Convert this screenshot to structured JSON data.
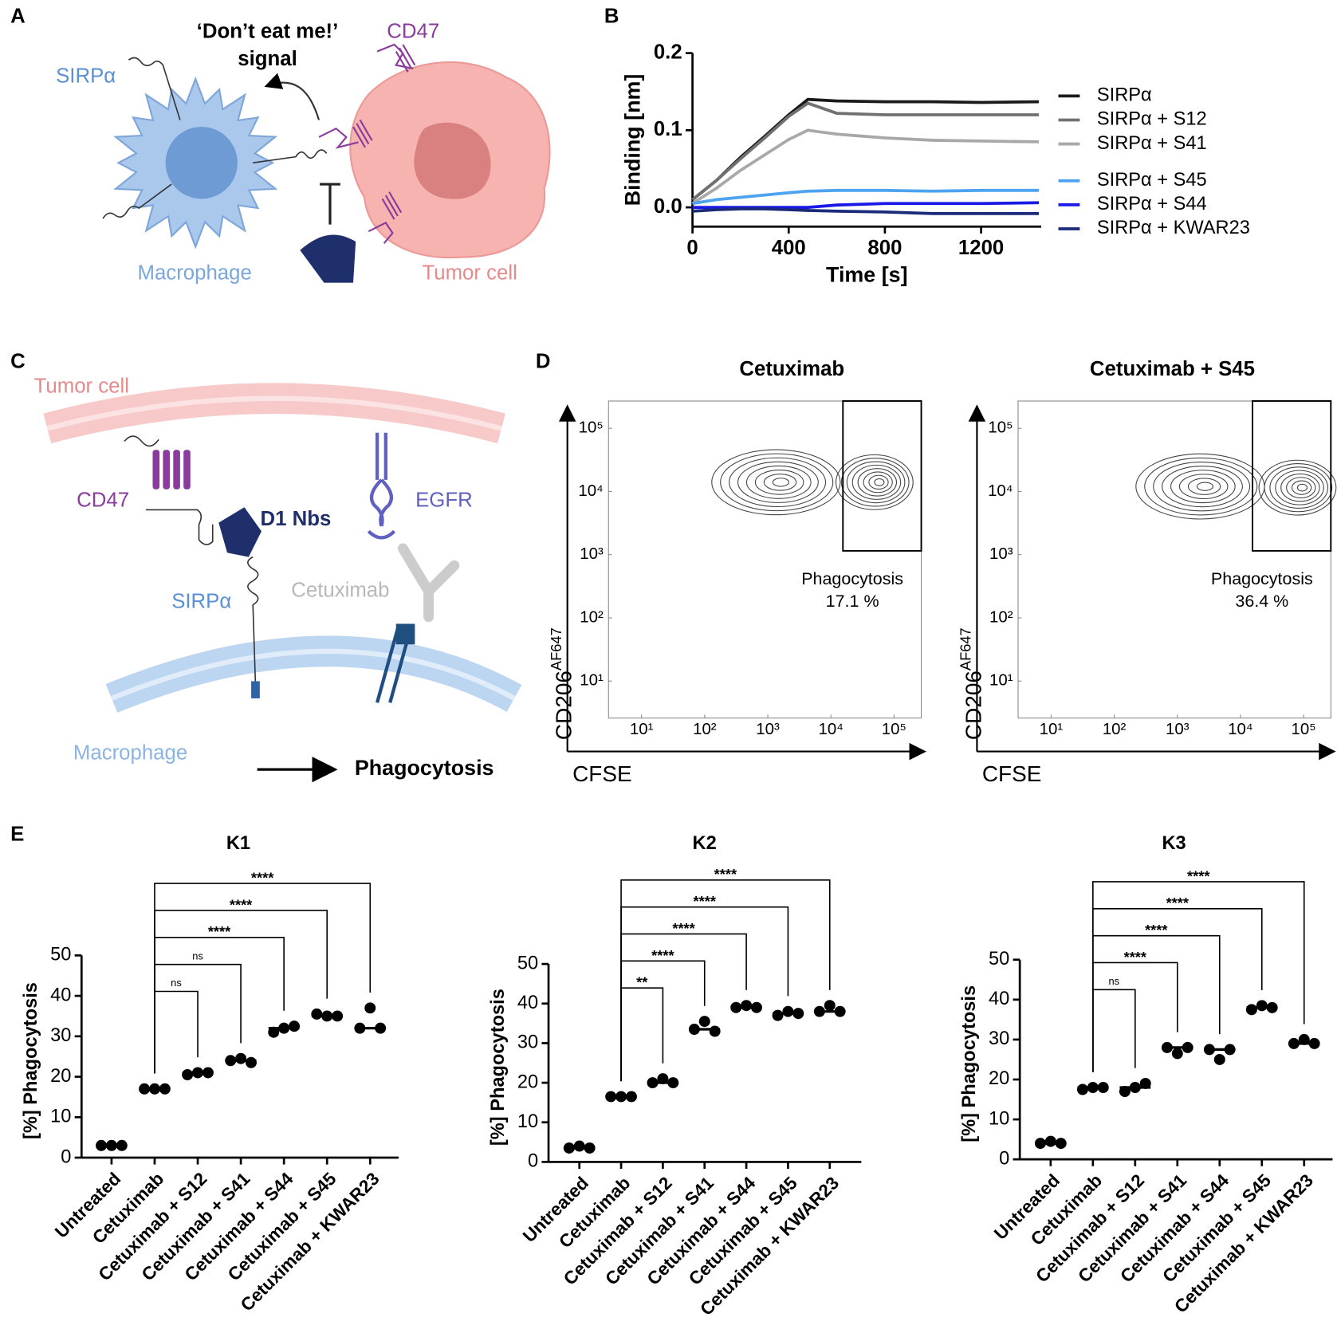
{
  "panels": [
    "A",
    "B",
    "C",
    "D",
    "E"
  ],
  "diagram_a": {
    "signal_line1": "‘Don’t eat me!’",
    "signal_line2": "signal",
    "cd47": "CD47",
    "sirpa": "SIRPα",
    "macrophage": "Macrophage",
    "tumor_cell": "Tumor cell"
  },
  "diagram_c": {
    "tumor_cell": "Tumor cell",
    "cd47": "CD47",
    "nbs": "D1 Nbs",
    "egfr": "EGFR",
    "sirpa": "SIRPα",
    "cetuximab": "Cetuximab",
    "macrophage": "Macrophage",
    "phagocytosis": "Phagocytosis"
  },
  "chart_data": [
    {
      "type": "line",
      "xlabel": "Time [s]",
      "ylabel": "Binding [nm]",
      "x": [
        0,
        100,
        200,
        300,
        400,
        480,
        600,
        800,
        1000,
        1200,
        1440
      ],
      "xlim": [
        0,
        1450
      ],
      "xticks": [
        0,
        400,
        800,
        1200
      ],
      "ylim": [
        -0.025,
        0.2
      ],
      "yticks": [
        {
          "value": 0,
          "label": "0.0"
        },
        0.1,
        0.2
      ],
      "series": [
        {
          "name": "SIRPα",
          "color": "#1a1a1a",
          "values": [
            0.01,
            0.035,
            0.065,
            0.092,
            0.12,
            0.14,
            0.138,
            0.137,
            0.137,
            0.136,
            0.137
          ]
        },
        {
          "name": "SIRPα + S12",
          "color": "#707070",
          "values": [
            0.01,
            0.035,
            0.063,
            0.09,
            0.118,
            0.135,
            0.122,
            0.12,
            0.12,
            0.12,
            0.12
          ]
        },
        {
          "name": "SIRPα + S41",
          "color": "#a8a8a8",
          "values": [
            0.005,
            0.025,
            0.048,
            0.068,
            0.088,
            0.1,
            0.095,
            0.09,
            0.087,
            0.086,
            0.085
          ]
        },
        {
          "name": "SIRPα + S45",
          "color": "#4da3ef",
          "values": [
            0.005,
            0.01,
            0.013,
            0.016,
            0.019,
            0.021,
            0.022,
            0.022,
            0.021,
            0.022,
            0.022
          ]
        },
        {
          "name": "SIRPα + S44",
          "color": "#1a1ae6",
          "values": [
            0,
            0,
            0,
            0,
            0,
            0,
            0.003,
            0.005,
            0.005,
            0.005,
            0.006
          ]
        },
        {
          "name": "SIRPα + KWAR23",
          "color": "#1c2a7a",
          "values": [
            -0.005,
            -0.003,
            -0.002,
            -0.002,
            -0.003,
            -0.004,
            -0.005,
            -0.006,
            -0.008,
            -0.008,
            -0.008
          ]
        }
      ]
    },
    {
      "type": "contour",
      "title": "Cetuximab",
      "xlabel": "CFSE",
      "ylabel": "CD206",
      "ylabel_sup": "AF647",
      "log_scale": true,
      "xlim": [
        3,
        270000
      ],
      "ylim": [
        2.6,
        270000
      ],
      "xticks": [
        {
          "value": 10,
          "label": "10¹"
        },
        {
          "value": 100,
          "label": "10²"
        },
        {
          "value": 1000,
          "label": "10³"
        },
        {
          "value": 10000,
          "label": "10⁴"
        },
        {
          "value": 100000,
          "label": "10⁵"
        }
      ],
      "yticks": [
        {
          "value": 10,
          "label": "10¹"
        },
        {
          "value": 100,
          "label": "10²"
        },
        {
          "value": 1000,
          "label": "10³"
        },
        {
          "value": 10000,
          "label": "10⁴"
        },
        {
          "value": 100000,
          "label": "10⁵"
        }
      ],
      "populations": [
        {
          "x": 1350,
          "y": 14000
        },
        {
          "x": 49000,
          "y": 14000
        }
      ],
      "gate": {
        "x_min": 15500,
        "y_min": 1150,
        "label": "Phagocytosis",
        "value": 17.1,
        "value_label": "17.1 %"
      }
    },
    {
      "type": "contour",
      "title": "Cetuximab + S45",
      "xlabel": "CFSE",
      "ylabel": "CD206",
      "ylabel_sup": "AF647",
      "log_scale": true,
      "xlim": [
        3,
        270000
      ],
      "ylim": [
        2.6,
        270000
      ],
      "xticks": [
        {
          "value": 10,
          "label": "10¹"
        },
        {
          "value": 100,
          "label": "10²"
        },
        {
          "value": 1000,
          "label": "10³"
        },
        {
          "value": 10000,
          "label": "10⁴"
        },
        {
          "value": 100000,
          "label": "10⁵"
        }
      ],
      "yticks": [
        {
          "value": 10,
          "label": "10¹"
        },
        {
          "value": 100,
          "label": "10²"
        },
        {
          "value": 1000,
          "label": "10³"
        },
        {
          "value": 10000,
          "label": "10⁴"
        },
        {
          "value": 100000,
          "label": "10⁵"
        }
      ],
      "populations": [
        {
          "x": 2300,
          "y": 12000
        },
        {
          "x": 80000,
          "y": 11500
        }
      ],
      "gate": {
        "x_min": 15500,
        "y_min": 1150,
        "label": "Phagocytosis",
        "value": 36.4,
        "value_label": "36.4 %"
      }
    },
    {
      "type": "dot",
      "title": "K1",
      "ylabel": "[%] Phagocytosis",
      "color": "#000000",
      "categories": [
        "Untreated",
        "Cetuximab",
        "Cetuximab + S12",
        "Cetuximab + S41",
        "Cetuximab + S44",
        "Cetuximab + S45",
        "Cetuximab + KWAR23"
      ],
      "values": [
        [
          3,
          3,
          3
        ],
        [
          17,
          17,
          17
        ],
        [
          20.5,
          21,
          21
        ],
        [
          24,
          24.5,
          23.5
        ],
        [
          31,
          32,
          32.5
        ],
        [
          35.5,
          35,
          35
        ],
        [
          32,
          37,
          32
        ]
      ],
      "reference": "Cetuximab",
      "significance": [
        null,
        null,
        "ns",
        "ns",
        "****",
        "****",
        "****"
      ],
      "ylim": [
        0,
        50
      ],
      "yticks": [
        0,
        10,
        20,
        30,
        40,
        50
      ]
    },
    {
      "type": "dot",
      "title": "K2",
      "ylabel": "[%] Phagocytosis",
      "color": "#000000",
      "categories": [
        "Untreated",
        "Cetuximab",
        "Cetuximab + S12",
        "Cetuximab + S41",
        "Cetuximab + S44",
        "Cetuximab + S45",
        "Cetuximab + KWAR23"
      ],
      "values": [
        [
          3.5,
          4,
          3.5
        ],
        [
          16.5,
          16.5,
          16.5
        ],
        [
          20,
          21,
          20
        ],
        [
          33.5,
          35.5,
          33
        ],
        [
          39,
          39.5,
          39
        ],
        [
          37,
          38,
          37.5
        ],
        [
          38,
          39.5,
          38
        ]
      ],
      "reference": "Cetuximab",
      "significance": [
        null,
        null,
        "**",
        "****",
        "****",
        "****",
        "****"
      ],
      "ylim": [
        0,
        50
      ],
      "yticks": [
        0,
        10,
        20,
        30,
        40,
        50
      ]
    },
    {
      "type": "dot",
      "title": "K3",
      "ylabel": "[%] Phagocytosis",
      "color": "#000000",
      "categories": [
        "Untreated",
        "Cetuximab",
        "Cetuximab + S12",
        "Cetuximab + S41",
        "Cetuximab + S44",
        "Cetuximab + S45",
        "Cetuximab + KWAR23"
      ],
      "values": [
        [
          4,
          4.5,
          4
        ],
        [
          17.5,
          18,
          18
        ],
        [
          17,
          18,
          19
        ],
        [
          28,
          26.5,
          28
        ],
        [
          27.5,
          25,
          27.5
        ],
        [
          37.5,
          38.5,
          38
        ],
        [
          29,
          30,
          29
        ]
      ],
      "reference": "Cetuximab",
      "significance": [
        null,
        null,
        "ns",
        "****",
        "****",
        "****",
        "****"
      ],
      "ylim": [
        0,
        50
      ],
      "yticks": [
        0,
        10,
        20,
        30,
        40,
        50
      ]
    }
  ]
}
